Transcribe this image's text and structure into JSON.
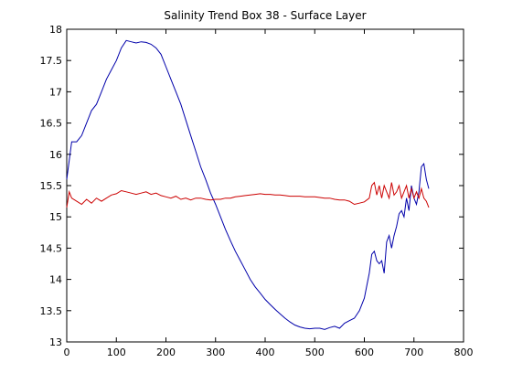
{
  "chart_data": {
    "type": "line",
    "title": "Salinity Trend Box 38 - Surface Layer",
    "xlabel": "",
    "ylabel": "",
    "xlim": [
      0,
      800
    ],
    "ylim": [
      13,
      18
    ],
    "xticks": [
      0,
      100,
      200,
      300,
      400,
      500,
      600,
      700,
      800
    ],
    "yticks": [
      13,
      13.5,
      14,
      14.5,
      15,
      15.5,
      16,
      16.5,
      17,
      17.5,
      18
    ],
    "grid": false,
    "legend": "none",
    "series": [
      {
        "color": "#0000aa",
        "x": [
          0,
          5,
          10,
          20,
          30,
          40,
          50,
          60,
          70,
          80,
          90,
          100,
          110,
          120,
          130,
          140,
          150,
          160,
          170,
          180,
          190,
          200,
          210,
          220,
          230,
          240,
          250,
          260,
          270,
          280,
          290,
          300,
          310,
          320,
          330,
          340,
          350,
          360,
          370,
          380,
          390,
          400,
          410,
          420,
          430,
          440,
          450,
          460,
          470,
          480,
          490,
          500,
          510,
          520,
          530,
          540,
          550,
          560,
          570,
          580,
          590,
          600,
          605,
          610,
          615,
          620,
          625,
          630,
          635,
          640,
          645,
          650,
          655,
          660,
          665,
          670,
          675,
          680,
          685,
          690,
          695,
          700,
          705,
          710,
          715,
          720,
          725,
          730
        ],
        "y": [
          15.6,
          15.9,
          16.2,
          16.2,
          16.3,
          16.5,
          16.7,
          16.8,
          17.0,
          17.2,
          17.35,
          17.5,
          17.7,
          17.82,
          17.8,
          17.78,
          17.8,
          17.79,
          17.76,
          17.7,
          17.6,
          17.4,
          17.2,
          17.0,
          16.8,
          16.55,
          16.3,
          16.05,
          15.8,
          15.6,
          15.38,
          15.2,
          15.0,
          14.8,
          14.62,
          14.45,
          14.3,
          14.15,
          14.0,
          13.88,
          13.78,
          13.68,
          13.6,
          13.52,
          13.45,
          13.38,
          13.32,
          13.27,
          13.24,
          13.22,
          13.21,
          13.22,
          13.22,
          13.2,
          13.23,
          13.25,
          13.22,
          13.3,
          13.34,
          13.38,
          13.5,
          13.7,
          13.9,
          14.1,
          14.4,
          14.45,
          14.3,
          14.25,
          14.3,
          14.1,
          14.6,
          14.7,
          14.5,
          14.7,
          14.85,
          15.05,
          15.1,
          15.0,
          15.3,
          15.1,
          15.5,
          15.3,
          15.2,
          15.4,
          15.8,
          15.85,
          15.6,
          15.45
        ]
      },
      {
        "color": "#cc0000",
        "x": [
          0,
          5,
          10,
          20,
          30,
          40,
          50,
          60,
          70,
          80,
          90,
          100,
          110,
          120,
          130,
          140,
          150,
          160,
          170,
          180,
          190,
          200,
          210,
          220,
          230,
          240,
          250,
          260,
          270,
          280,
          290,
          300,
          310,
          320,
          330,
          340,
          350,
          360,
          370,
          380,
          390,
          400,
          410,
          420,
          430,
          440,
          450,
          460,
          470,
          480,
          490,
          500,
          510,
          520,
          530,
          540,
          550,
          560,
          570,
          580,
          590,
          600,
          610,
          615,
          620,
          625,
          630,
          635,
          640,
          645,
          650,
          655,
          660,
          665,
          670,
          675,
          680,
          685,
          690,
          695,
          700,
          705,
          710,
          715,
          720,
          725,
          730
        ],
        "y": [
          15.15,
          15.4,
          15.3,
          15.25,
          15.2,
          15.28,
          15.22,
          15.3,
          15.25,
          15.3,
          15.35,
          15.37,
          15.42,
          15.4,
          15.38,
          15.36,
          15.38,
          15.4,
          15.36,
          15.38,
          15.34,
          15.32,
          15.3,
          15.33,
          15.28,
          15.3,
          15.27,
          15.3,
          15.3,
          15.28,
          15.27,
          15.28,
          15.28,
          15.3,
          15.3,
          15.32,
          15.33,
          15.34,
          15.35,
          15.36,
          15.37,
          15.36,
          15.36,
          15.35,
          15.35,
          15.34,
          15.33,
          15.33,
          15.33,
          15.32,
          15.32,
          15.32,
          15.31,
          15.3,
          15.3,
          15.28,
          15.27,
          15.27,
          15.25,
          15.2,
          15.22,
          15.24,
          15.3,
          15.5,
          15.55,
          15.35,
          15.5,
          15.3,
          15.5,
          15.4,
          15.3,
          15.55,
          15.35,
          15.4,
          15.5,
          15.3,
          15.4,
          15.5,
          15.3,
          15.45,
          15.3,
          15.4,
          15.3,
          15.45,
          15.3,
          15.25,
          15.15
        ]
      }
    ]
  }
}
